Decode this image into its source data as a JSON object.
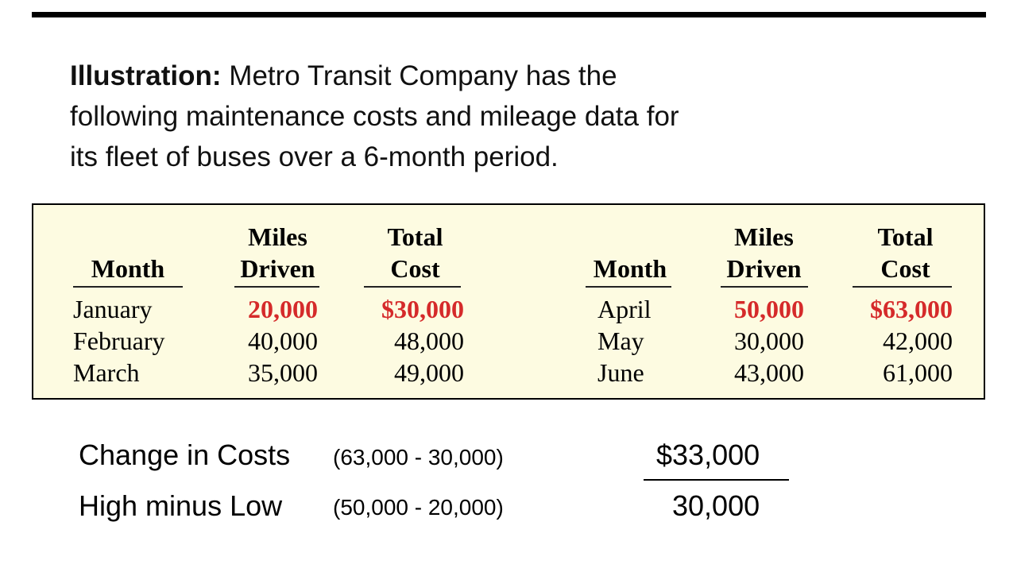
{
  "intro": {
    "lead": "Illustration:",
    "line1_rest": " Metro Transit Company has the",
    "line2": "following maintenance costs and mileage data for",
    "line3": "its fleet of buses over a 6-month period."
  },
  "table": {
    "headers": {
      "month": "Month",
      "miles_top": "Miles",
      "miles_bottom": "Driven",
      "cost_top": "Total",
      "cost_bottom": "Cost"
    },
    "left_rows": [
      {
        "month": "January",
        "miles": "20,000",
        "cost": "$30,000"
      },
      {
        "month": "February",
        "miles": "40,000",
        "cost": "48,000"
      },
      {
        "month": "March",
        "miles": "35,000",
        "cost": "49,000"
      }
    ],
    "right_rows": [
      {
        "month": "April",
        "miles": "50,000",
        "cost": "$63,000"
      },
      {
        "month": "May",
        "miles": "30,000",
        "cost": "42,000"
      },
      {
        "month": "June",
        "miles": "43,000",
        "cost": "61,000"
      }
    ],
    "highlight_color": "#d52a2a"
  },
  "calculation": {
    "costs_label": "Change in Costs",
    "costs_formula": "(63,000 - 30,000)",
    "costs_value": "$33,000",
    "miles_label": "High minus Low",
    "miles_formula": "(50,000 - 20,000)",
    "miles_value": "30,000"
  }
}
